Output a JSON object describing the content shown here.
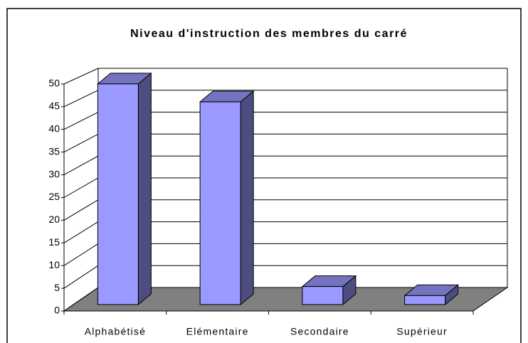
{
  "chart_data": {
    "type": "bar3d",
    "title": "Niveau d'instruction des membres du carré",
    "categories": [
      "Alphabétisé",
      "Elémentaire",
      "Secondaire",
      "Supérieur"
    ],
    "values": [
      49,
      45,
      4,
      2
    ],
    "color": "#9999ff",
    "ylim": [
      0,
      50
    ],
    "yticks": [
      0,
      5,
      10,
      15,
      20,
      25,
      30,
      35,
      40,
      45,
      50
    ],
    "grid": true
  }
}
